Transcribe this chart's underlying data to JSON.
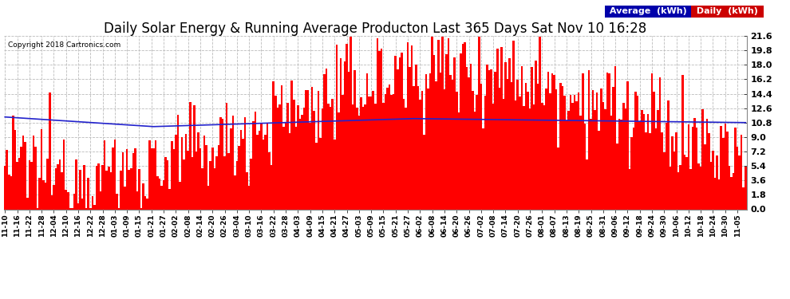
{
  "title": "Daily Solar Energy & Running Average Producton Last 365 Days Sat Nov 10 16:28",
  "copyright": "Copyright 2018 Cartronics.com",
  "ylim": [
    0.0,
    21.6
  ],
  "yticks": [
    0.0,
    1.8,
    3.6,
    5.4,
    7.2,
    9.0,
    10.8,
    12.6,
    14.4,
    16.2,
    18.0,
    19.8,
    21.6
  ],
  "bar_color": "#ff0000",
  "avg_color": "#2222cc",
  "background_color": "#ffffff",
  "grid_color": "#bbbbbb",
  "legend_avg_bg": "#0000aa",
  "legend_daily_bg": "#cc0000",
  "title_fontsize": 12,
  "num_days": 365,
  "x_labels": [
    "11-10",
    "11-16",
    "11-22",
    "11-28",
    "12-04",
    "12-10",
    "12-16",
    "12-22",
    "12-28",
    "01-03",
    "01-09",
    "01-15",
    "01-21",
    "01-27",
    "02-02",
    "02-08",
    "02-14",
    "02-20",
    "02-26",
    "03-04",
    "03-10",
    "03-16",
    "03-22",
    "03-28",
    "04-03",
    "04-09",
    "04-15",
    "04-21",
    "04-27",
    "05-03",
    "05-09",
    "05-15",
    "05-21",
    "05-27",
    "06-02",
    "06-08",
    "06-14",
    "06-20",
    "06-26",
    "07-02",
    "07-08",
    "07-14",
    "07-20",
    "07-26",
    "08-01",
    "08-07",
    "08-13",
    "08-19",
    "08-25",
    "08-31",
    "09-06",
    "09-12",
    "09-18",
    "09-24",
    "09-30",
    "10-06",
    "10-12",
    "10-18",
    "10-24",
    "10-30",
    "11-05"
  ]
}
